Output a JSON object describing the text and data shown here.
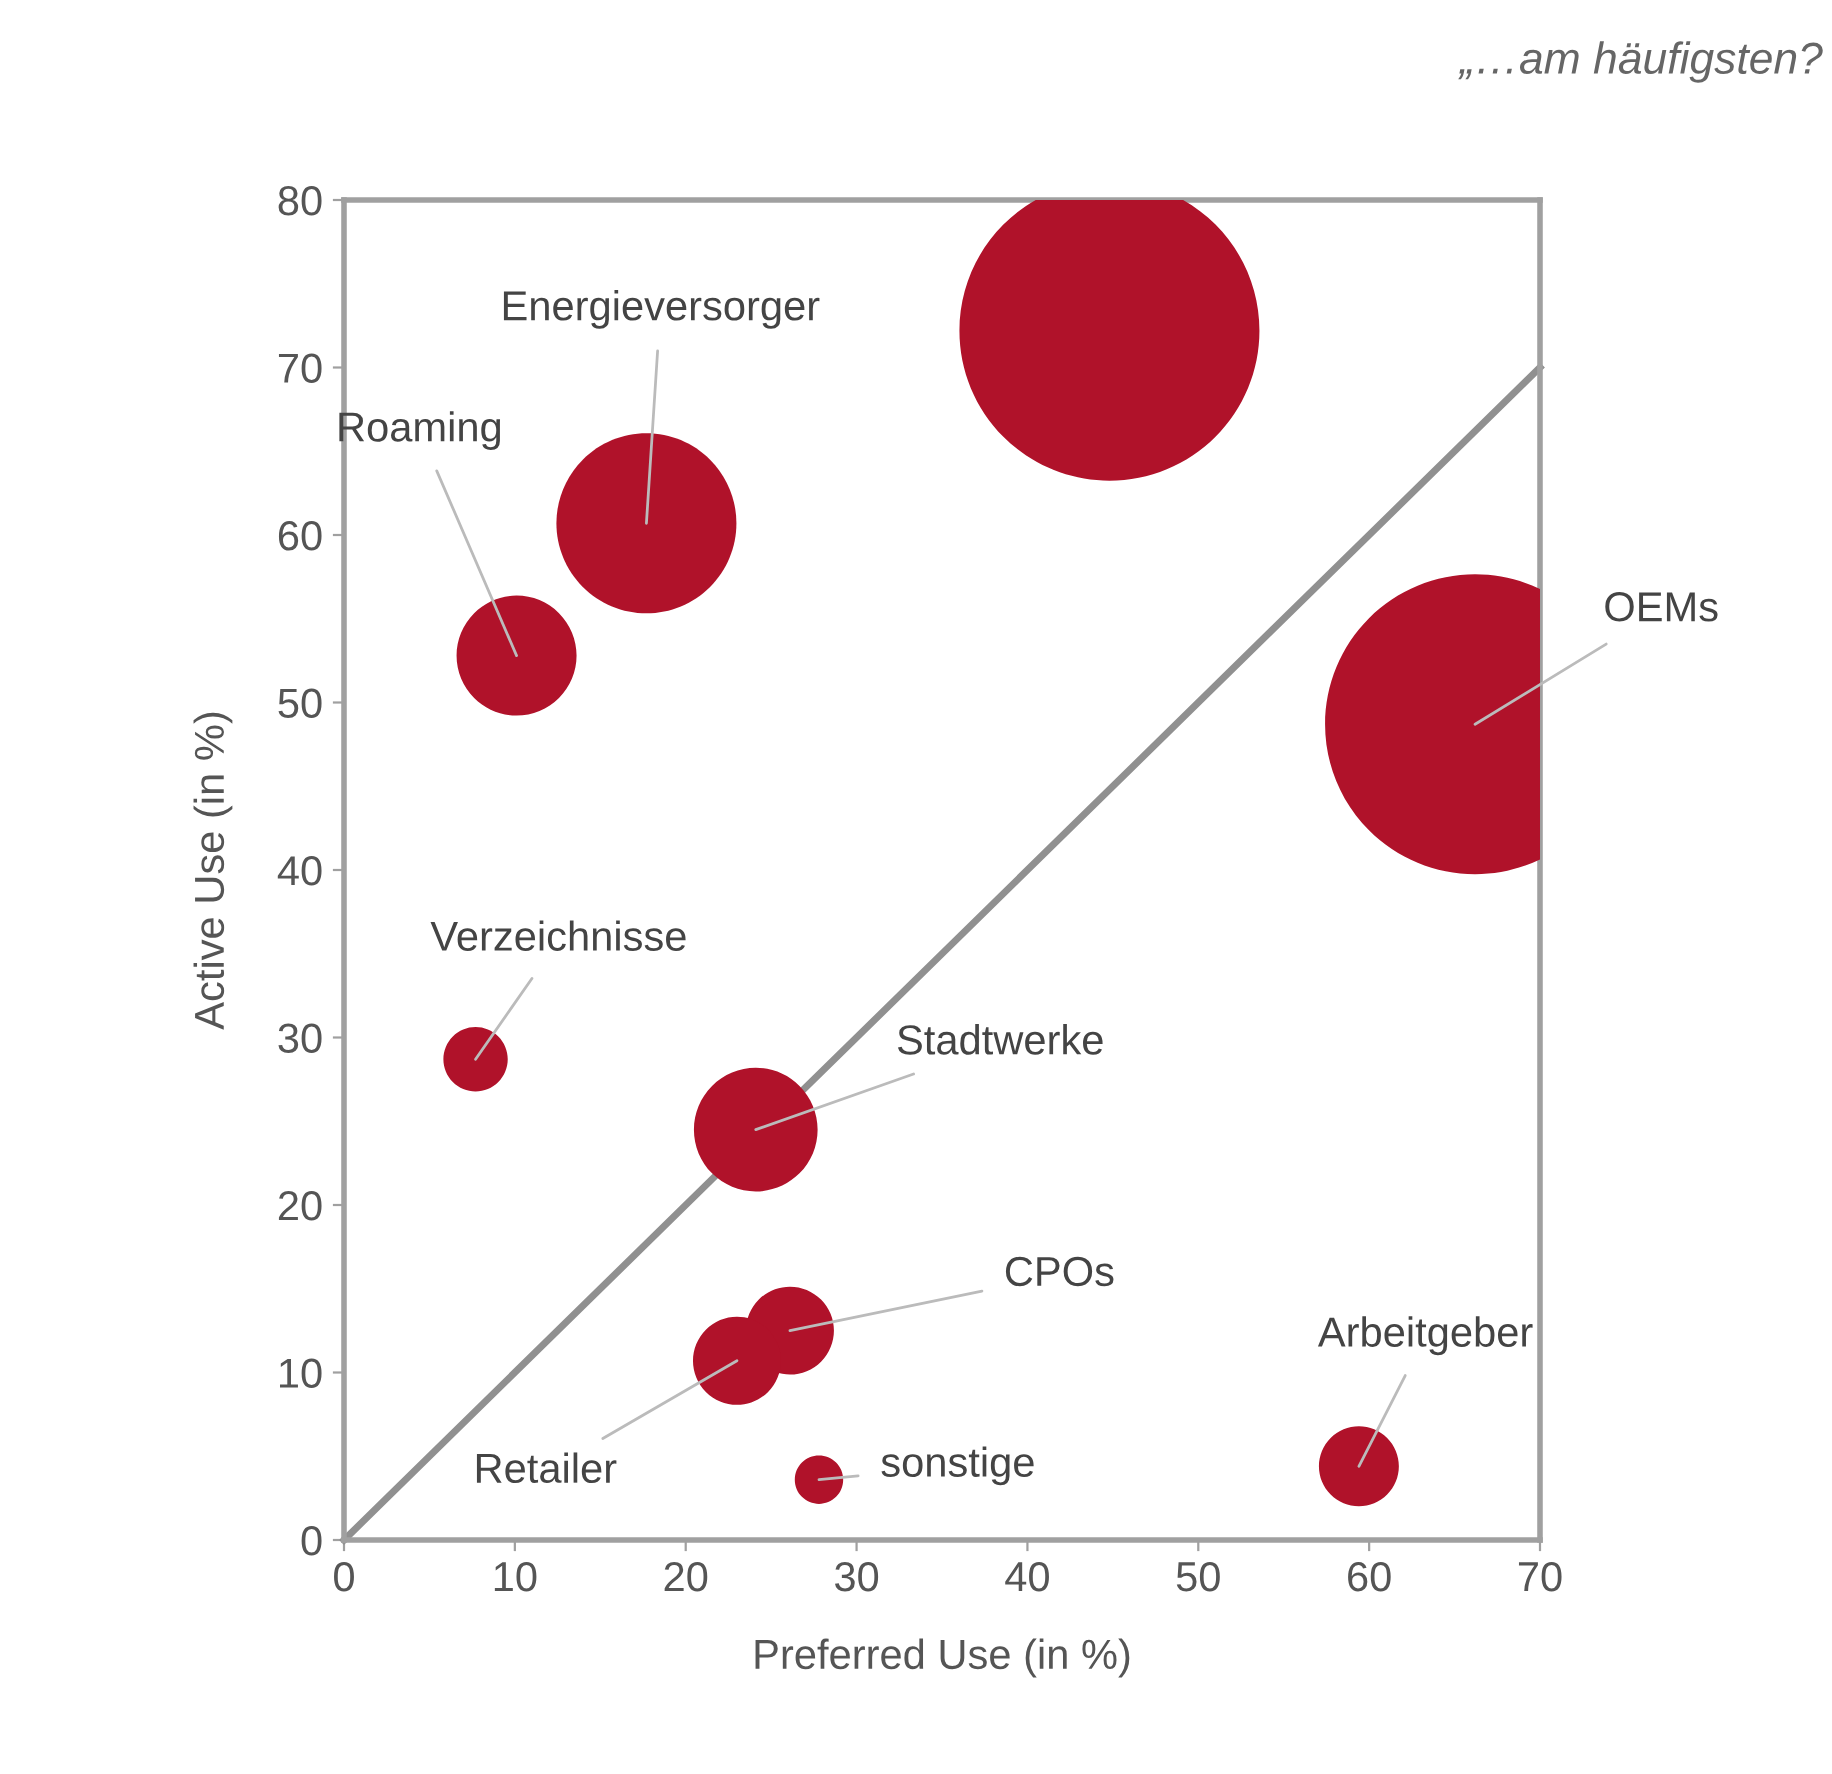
{
  "chart_data": {
    "type": "bubble",
    "title": "„…am häufigsten?",
    "xlabel": "Preferred Use (in %)",
    "ylabel": "Active Use (in %)",
    "xlim": [
      0,
      70
    ],
    "ylim": [
      0,
      80
    ],
    "xticks": [
      0,
      10,
      20,
      30,
      40,
      50,
      60,
      70
    ],
    "yticks": [
      0,
      10,
      20,
      30,
      40,
      50,
      60,
      70,
      80
    ],
    "series": [
      {
        "color": "#b0122a",
        "x": [
          44.8,
          17.7,
          10.1,
          66.2,
          7.7,
          24.1,
          26.1,
          23,
          27.8,
          59.4
        ],
        "values": [
          72.2,
          60.7,
          52.8,
          48.7,
          28.7,
          24.5,
          12.5,
          10.7,
          3.6,
          4.4
        ],
        "sizes": [
          1,
          0.36,
          0.16,
          1,
          0.046,
          0.17,
          0.086,
          0.086,
          0.026,
          0.071
        ]
      },
      {
        "type": "line",
        "color": "#909090",
        "x": [
          0,
          70
        ],
        "values": [
          0,
          70
        ]
      }
    ],
    "annotations": [
      {
        "text": "Energieversorger",
        "x": 17.7,
        "y": 60.7
      },
      {
        "text": "Roaming",
        "x": 10.1,
        "y": 52.8
      },
      {
        "text": "OEMs",
        "x": 66.2,
        "y": 48.7
      },
      {
        "text": "Verzeichnisse",
        "x": 7.7,
        "y": 28.7
      },
      {
        "text": "Stadtwerke",
        "x": 24.1,
        "y": 24.5
      },
      {
        "text": "CPOs",
        "x": 26.1,
        "y": 12.5
      },
      {
        "text": "Retailer",
        "x": 23,
        "y": 10.7
      },
      {
        "text": "sonstige",
        "x": 27.8,
        "y": 3.6
      },
      {
        "text": "Arbeitgeber",
        "x": 59.4,
        "y": 4.4
      }
    ]
  }
}
